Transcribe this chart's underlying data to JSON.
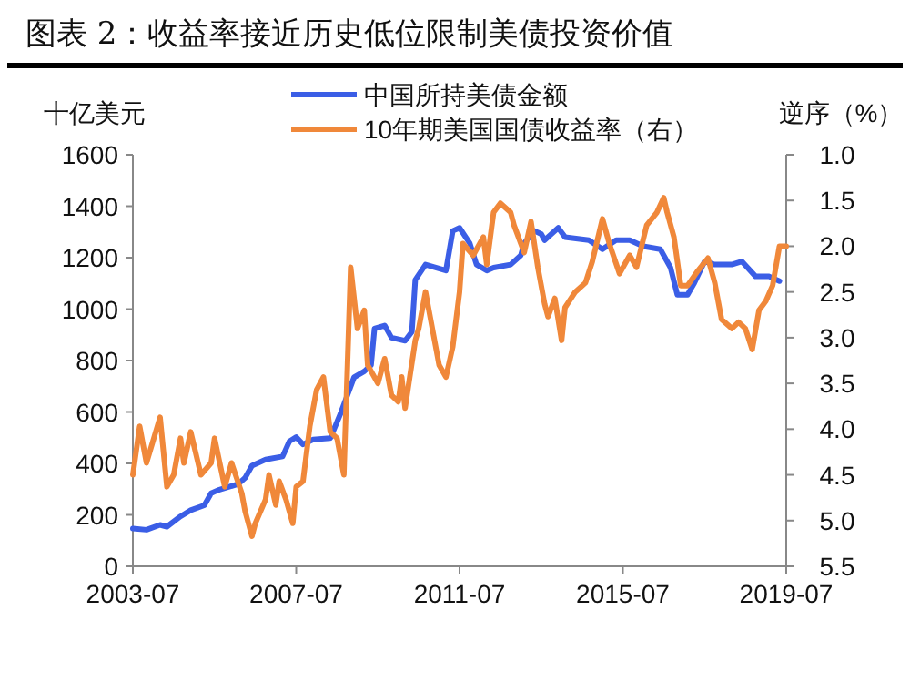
{
  "chart_data": {
    "type": "line",
    "title": "图表 2：收益率接近历史低位限制美债投资价值",
    "ylabel": "十亿美元",
    "y2label": "逆序（%）",
    "xlim": [
      "2003-07",
      "2019-07"
    ],
    "xticks": [
      "2003-07",
      "2007-07",
      "2011-07",
      "2015-07",
      "2019-07"
    ],
    "ylim": [
      0,
      1600
    ],
    "yticks": [
      0,
      200,
      400,
      600,
      800,
      1000,
      1200,
      1400,
      1600
    ],
    "y2lim": [
      5.5,
      1.0
    ],
    "y2ticks": [
      {
        "value": 1.0,
        "label": "1.0"
      },
      {
        "value": 1.5,
        "label": "1.5"
      },
      {
        "value": 2.0,
        "label": "2.0"
      },
      {
        "value": 2.5,
        "label": "2.5"
      },
      {
        "value": 3.0,
        "label": "3.0"
      },
      {
        "value": 3.5,
        "label": "3.5"
      },
      {
        "value": 4.0,
        "label": "4.0"
      },
      {
        "value": 4.5,
        "label": "4.5"
      },
      {
        "value": 5.0,
        "label": "5.0"
      },
      {
        "value": 5.5,
        "label": "5.5"
      }
    ],
    "legend": "top",
    "grid": false,
    "marker": "none",
    "line_style": "solid",
    "series": [
      {
        "name": "中国所持美债金额",
        "color": "#3b5ee6",
        "axis": "y",
        "x": [
          "2003-07",
          "2003-11",
          "2004-03",
          "2004-05",
          "2004-09",
          "2004-12",
          "2005-04",
          "2005-06",
          "2005-08",
          "2006-02",
          "2006-04",
          "2006-06",
          "2006-10",
          "2007-03",
          "2007-05",
          "2007-07",
          "2007-09",
          "2007-12",
          "2008-05",
          "2008-08",
          "2008-12",
          "2009-03",
          "2009-05",
          "2009-06",
          "2009-09",
          "2009-11",
          "2010-03",
          "2010-05",
          "2010-06",
          "2010-09",
          "2011-03",
          "2011-05",
          "2011-07",
          "2011-10",
          "2011-12",
          "2012-03",
          "2012-05",
          "2012-10",
          "2013-01",
          "2013-02",
          "2013-05",
          "2013-07",
          "2013-08",
          "2013-12",
          "2014-02",
          "2014-09",
          "2015-01",
          "2015-05",
          "2015-09",
          "2016-01",
          "2016-06",
          "2016-09",
          "2016-11",
          "2017-02",
          "2017-04",
          "2017-07",
          "2017-10",
          "2018-03",
          "2018-06",
          "2018-10",
          "2019-02",
          "2019-05"
        ],
        "values": [
          147,
          142,
          161,
          154,
          194,
          218,
          237,
          284,
          296,
          320,
          344,
          391,
          415,
          427,
          486,
          502,
          474,
          493,
          498,
          593,
          735,
          758,
          782,
          924,
          936,
          889,
          877,
          912,
          1114,
          1173,
          1150,
          1304,
          1316,
          1256,
          1173,
          1150,
          1161,
          1173,
          1209,
          1256,
          1304,
          1292,
          1268,
          1316,
          1280,
          1268,
          1233,
          1268,
          1268,
          1244,
          1233,
          1161,
          1056,
          1056,
          1102,
          1185,
          1173,
          1173,
          1185,
          1127,
          1127,
          1109
        ]
      },
      {
        "name": "10年期美国国债收益率（右）",
        "color": "#f0883a",
        "axis": "y2",
        "x": [
          "2003-07",
          "2003-09",
          "2003-11",
          "2004-03",
          "2004-05",
          "2004-07",
          "2004-09",
          "2004-10",
          "2004-12",
          "2005-03",
          "2005-06",
          "2005-07",
          "2005-10",
          "2005-12",
          "2006-03",
          "2006-04",
          "2006-06",
          "2006-07",
          "2006-10",
          "2006-11",
          "2007-01",
          "2007-02",
          "2007-04",
          "2007-06",
          "2007-07",
          "2007-09",
          "2007-11",
          "2008-01",
          "2008-03",
          "2008-05",
          "2008-07",
          "2008-09",
          "2008-11",
          "2009-01",
          "2009-03",
          "2009-04",
          "2009-07",
          "2009-09",
          "2009-11",
          "2010-01",
          "2010-02",
          "2010-03",
          "2010-06",
          "2010-07",
          "2010-09",
          "2010-10",
          "2011-01",
          "2011-03",
          "2011-05",
          "2011-07",
          "2011-08",
          "2011-11",
          "2012-02",
          "2012-03",
          "2012-05",
          "2012-07",
          "2012-10",
          "2012-11",
          "2013-02",
          "2013-04",
          "2013-06",
          "2013-08",
          "2013-09",
          "2013-11",
          "2014-01",
          "2014-02",
          "2014-05",
          "2014-08",
          "2014-10",
          "2015-01",
          "2015-03",
          "2015-06",
          "2015-09",
          "2015-11",
          "2016-02",
          "2016-05",
          "2016-07",
          "2016-08",
          "2016-10",
          "2016-12",
          "2017-02",
          "2017-05",
          "2017-08",
          "2017-10",
          "2017-12",
          "2018-03",
          "2018-05",
          "2018-07",
          "2018-09",
          "2018-11",
          "2019-01",
          "2019-03",
          "2019-05",
          "2019-07"
        ],
        "values": [
          4.5,
          3.97,
          4.37,
          3.87,
          4.63,
          4.5,
          4.1,
          4.37,
          4.03,
          4.5,
          4.37,
          4.1,
          4.63,
          4.37,
          4.7,
          4.9,
          5.17,
          5.03,
          4.77,
          4.5,
          4.83,
          4.57,
          4.77,
          5.03,
          4.63,
          4.57,
          3.97,
          3.57,
          3.43,
          4.03,
          4.1,
          4.5,
          2.23,
          2.9,
          2.7,
          3.3,
          3.5,
          3.23,
          3.63,
          3.7,
          3.43,
          3.77,
          3.03,
          2.9,
          2.5,
          2.7,
          3.3,
          3.43,
          3.1,
          2.5,
          1.97,
          2.1,
          1.9,
          2.2,
          1.63,
          1.53,
          1.63,
          1.77,
          2.07,
          1.73,
          2.23,
          2.63,
          2.77,
          2.57,
          3.03,
          2.67,
          2.5,
          2.4,
          2.17,
          1.7,
          1.97,
          2.3,
          2.1,
          2.23,
          1.77,
          1.63,
          1.47,
          1.63,
          1.9,
          2.43,
          2.43,
          2.27,
          2.13,
          2.4,
          2.8,
          2.9,
          2.83,
          2.9,
          3.13,
          2.7,
          2.6,
          2.43,
          2.0,
          2.0
        ]
      }
    ]
  }
}
